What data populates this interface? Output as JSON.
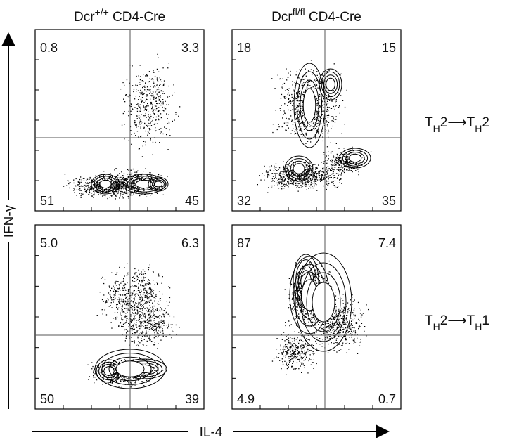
{
  "headers": [
    {
      "segments": [
        {
          "text": "Dcr"
        },
        {
          "text": "+/+",
          "sup": true
        },
        {
          "text": " CD4-Cre"
        }
      ]
    },
    {
      "segments": [
        {
          "text": "Dcr"
        },
        {
          "text": "fl/fl",
          "sup": true
        },
        {
          "text": " CD4-Cre"
        }
      ]
    }
  ],
  "row_labels": [
    {
      "segments": [
        {
          "text": "T"
        },
        {
          "text": "H",
          "sub": true
        },
        {
          "text": "2⟶T"
        },
        {
          "text": "H",
          "sub": true
        },
        {
          "text": "2"
        }
      ]
    },
    {
      "segments": [
        {
          "text": "T"
        },
        {
          "text": "H",
          "sub": true
        },
        {
          "text": "2⟶T"
        },
        {
          "text": "H",
          "sub": true
        },
        {
          "text": "1"
        }
      ]
    }
  ],
  "y_axis_label": "IFN-γ",
  "x_axis_label": "IL-4",
  "panels": [
    {
      "quadrants": {
        "upper_left": "0.8",
        "upper_right": "3.3",
        "lower_left": "51",
        "lower_right": "45"
      }
    },
    {
      "quadrants": {
        "upper_left": "18",
        "upper_right": "15",
        "lower_left": "32",
        "lower_right": "35"
      }
    },
    {
      "quadrants": {
        "upper_left": "5.0",
        "upper_right": "6.3",
        "lower_left": "50",
        "lower_right": "39"
      }
    },
    {
      "quadrants": {
        "upper_left": "87",
        "upper_right": "7.4",
        "lower_left": "4.9",
        "lower_right": "0.7"
      }
    }
  ]
}
